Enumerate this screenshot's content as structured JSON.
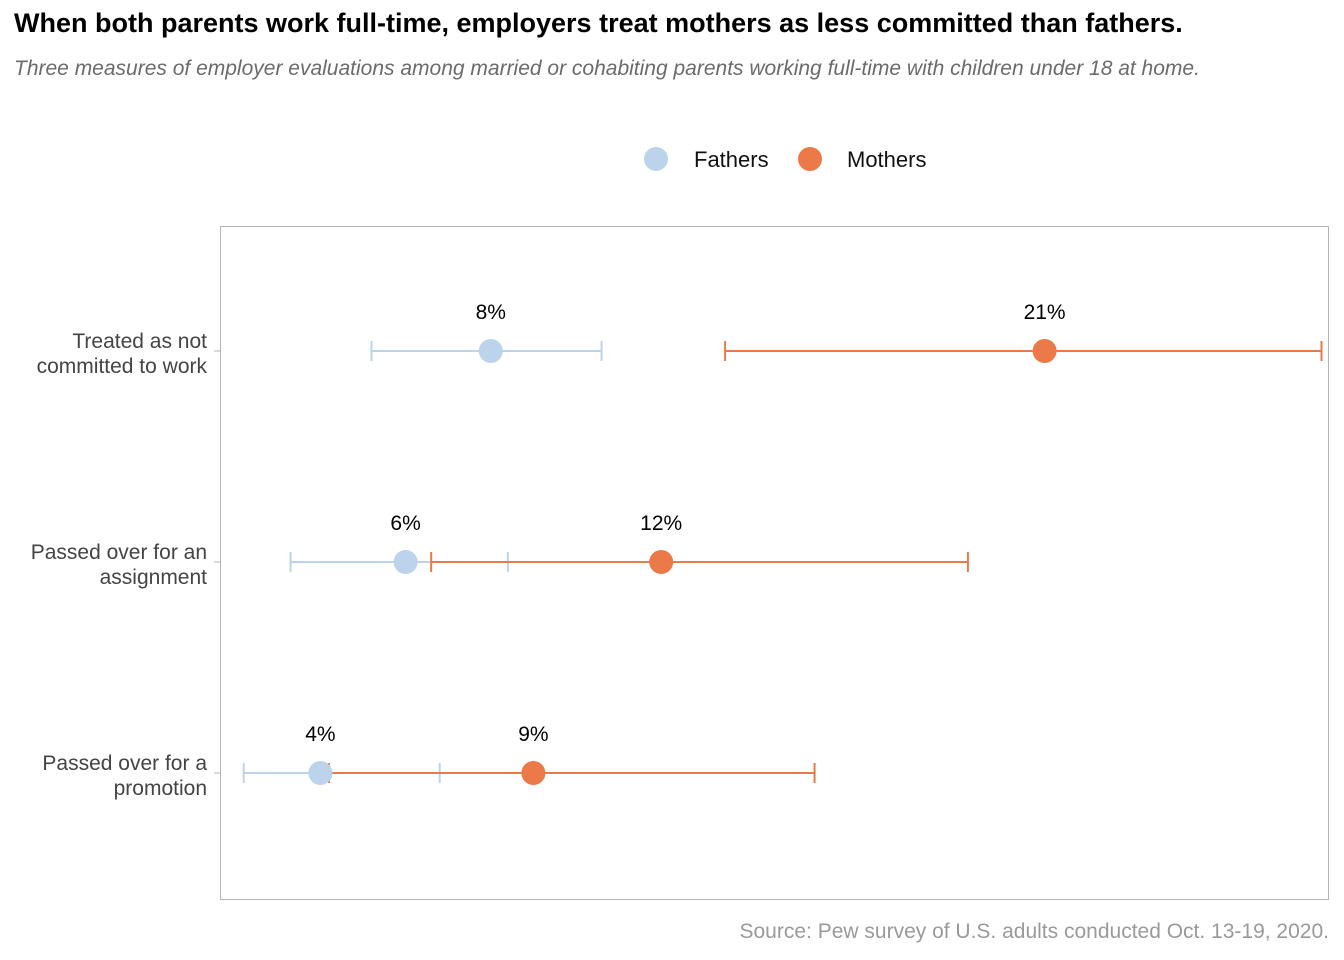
{
  "title": "When both parents work full-time, employers treat mothers as less committed than fathers.",
  "subtitle": "Three measures of employer evaluations among married or cohabiting parents working full-time with children under 18 at home.",
  "source": "Source: Pew survey of U.S. adults conducted Oct. 13-19, 2020.",
  "colors": {
    "fathers": "#bcd3ec",
    "mothers": "#ec7a48",
    "axis": "#b3b3b3",
    "label": "#444444"
  },
  "chart_data": {
    "type": "scatter",
    "subtype": "dot-plot-with-error-bars",
    "title": "When both parents work full-time, employers treat mothers as less committed than fathers.",
    "subtitle": "Three measures of employer evaluations among married or cohabiting parents working full-time with children under 18 at home.",
    "categories": [
      [
        "Treated as not",
        "committed to work"
      ],
      [
        "Passed over for an",
        "assignment"
      ],
      [
        "Passed over for a",
        "promotion"
      ]
    ],
    "xlim": [
      0,
      30
    ],
    "x_axis_visible": false,
    "grid": false,
    "legend_position": "top",
    "series": [
      {
        "name": "Fathers",
        "color": "#bcd3ec",
        "values": [
          8,
          6,
          4
        ],
        "labels": [
          "8%",
          "6%",
          "4%"
        ],
        "ci_low": [
          5.2,
          3.3,
          2.2
        ],
        "ci_high": [
          10.6,
          8.4,
          6.8
        ]
      },
      {
        "name": "Mothers",
        "color": "#ec7a48",
        "values": [
          21,
          12,
          9
        ],
        "labels": [
          "21%",
          "12%",
          "9%"
        ],
        "ci_low": [
          13.5,
          6.6,
          4.2
        ],
        "ci_high": [
          27.5,
          19.2,
          15.6
        ]
      }
    ]
  }
}
